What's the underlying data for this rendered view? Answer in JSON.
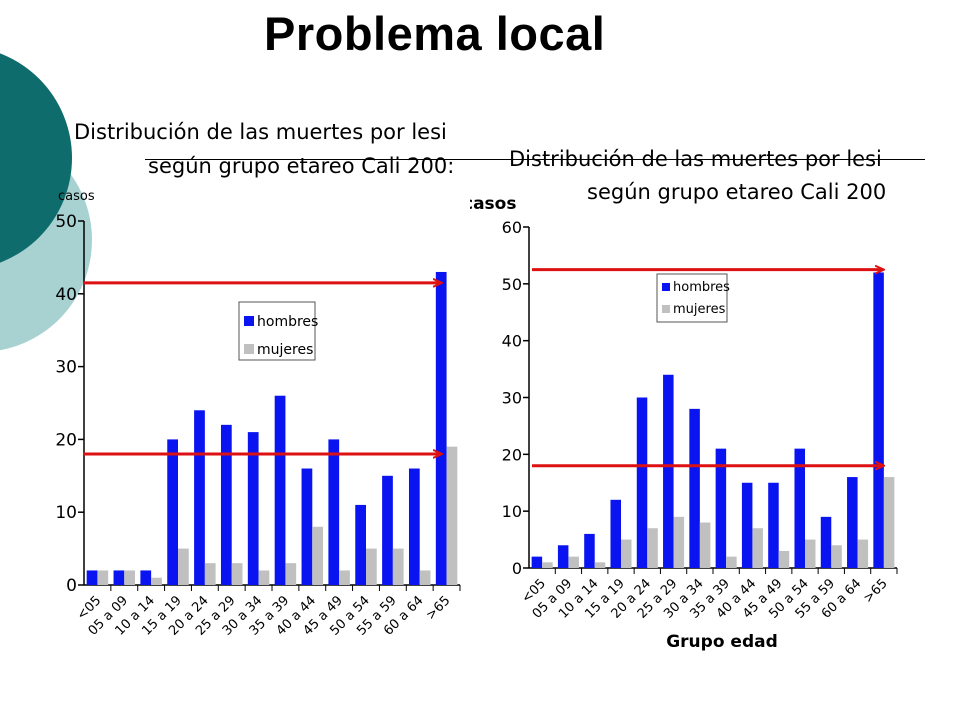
{
  "slide": {
    "title": "Problema local"
  },
  "chart_data": [
    {
      "type": "bar",
      "title": "Distribución de las muertes por lesi",
      "subtitle": "según grupo etareo Cali 200",
      "subtitle_suffix": ":",
      "ylabel": "casos",
      "xlabel": "",
      "ylim": [
        0,
        50
      ],
      "yticks": [
        "0",
        "10",
        "20",
        "30",
        "40",
        "50"
      ],
      "categories": [
        "<05",
        "05 a 09",
        "10 a 14",
        "15 a 19",
        "20 a 24",
        "25 a 29",
        "30 a 34",
        "35 a 39",
        "40 a 44",
        "45 a 49",
        "50 a 54",
        "55 a 59",
        "60 a 64",
        ">65"
      ],
      "series": [
        {
          "name": "hombres",
          "color": "#0a14f0",
          "values": [
            2,
            2,
            2,
            20,
            24,
            22,
            21,
            26,
            16,
            20,
            11,
            15,
            16,
            43
          ]
        },
        {
          "name": "mujeres",
          "color": "#c0c0c0",
          "values": [
            2,
            2,
            1,
            5,
            3,
            3,
            2,
            3,
            8,
            2,
            5,
            5,
            2,
            19
          ]
        }
      ],
      "reference_values": [
        41.5,
        18
      ],
      "reference_color": "#dd1111"
    },
    {
      "type": "bar",
      "title": "Distribución de las muertes por lesi",
      "subtitle": "según grupo etareo Cali 200",
      "ylabel": "casos",
      "xlabel": "Grupo edad",
      "ylim": [
        0,
        60
      ],
      "yticks": [
        "0",
        "10",
        "20",
        "30",
        "40",
        "50",
        "60"
      ],
      "categories": [
        "<05",
        "05 a 09",
        "10 a 14",
        "15 a 19",
        "20 a 24",
        "25 a 29",
        "30 a 34",
        "35 a 39",
        "40 a 44",
        "45 a 49",
        "50 a 54",
        "55 a 59",
        "60 a 64",
        ">65"
      ],
      "series": [
        {
          "name": "hombres",
          "color": "#0a14f0",
          "values": [
            2,
            4,
            6,
            12,
            30,
            34,
            28,
            21,
            15,
            15,
            21,
            9,
            16,
            52
          ]
        },
        {
          "name": "mujeres",
          "color": "#c0c0c0",
          "values": [
            1,
            2,
            1,
            5,
            7,
            9,
            8,
            2,
            7,
            3,
            5,
            4,
            5,
            16
          ]
        }
      ],
      "reference_values": [
        52.5,
        18
      ],
      "reference_color": "#dd1111"
    }
  ]
}
